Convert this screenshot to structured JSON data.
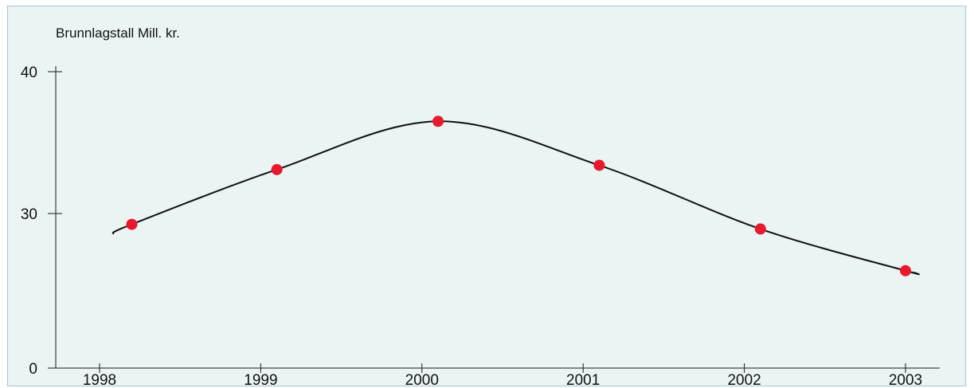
{
  "chart_data": {
    "type": "line",
    "title": "",
    "ylabel": "Brunnlagstall Mill. kr.",
    "xlabel": "",
    "ylim": [
      0,
      40
    ],
    "y_ticks": [
      "0",
      "30",
      "40"
    ],
    "x_ticks": [
      "1998",
      "1999",
      "2000",
      "2001",
      "2002",
      "2003"
    ],
    "grid": false,
    "smooth": true,
    "colors": {
      "line": "#111111",
      "marker": "#e8192c",
      "background": "#e9f4f3",
      "border": "#a7c3da"
    },
    "series": [
      {
        "x": [
          1998.2,
          1999.1,
          2000.1,
          2001.1,
          2002.1,
          2003.0
        ],
        "values": [
          27.9,
          33.1,
          36.5,
          33.4,
          27.0,
          18.9
        ]
      }
    ]
  }
}
